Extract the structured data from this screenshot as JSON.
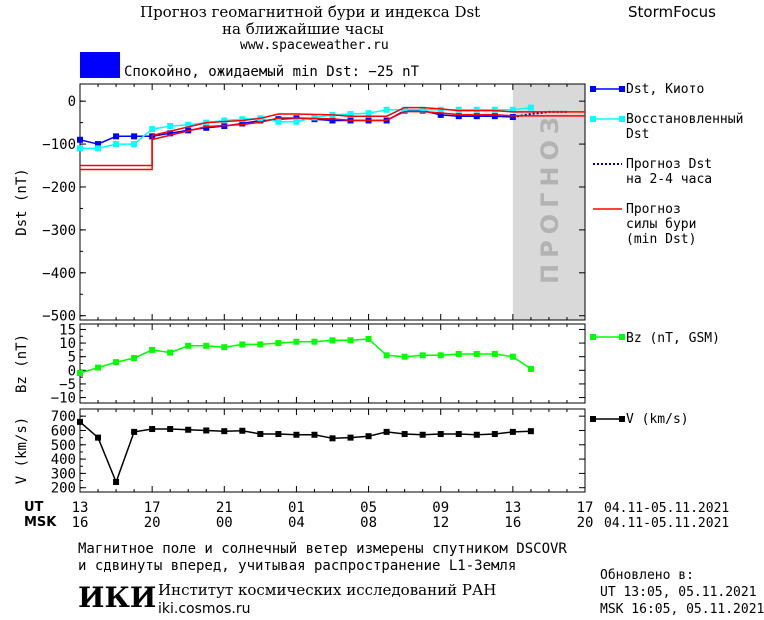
{
  "header": {
    "title_line1": "Прогноз геомагнитной бури и индекса Dst",
    "title_line2": "на ближайшие часы",
    "site": "www.spaceweather.ru",
    "brand": "StormFocus",
    "status_text": "Спокойно, ожидаемый min Dst: −25 nT",
    "status_color": "#0000ff"
  },
  "forecast_band_label": "ПРОГНОЗ",
  "legend": {
    "dst_kyoto": "Dst, Киото",
    "restored_1": "Восстановленный",
    "restored_2": "Dst",
    "forecast_1": "Прогноз Dst",
    "forecast_2": "на 2-4 часа",
    "storm_1": "Прогноз",
    "storm_2": "силы бури",
    "storm_3": "(min Dst)",
    "bz": "Bz (nT, GSM)",
    "v": "V (km/s)"
  },
  "time_axis": {
    "ut_label": "UT",
    "msk_label": "MSK",
    "ut_ticks": [
      "13",
      "17",
      "21",
      "01",
      "05",
      "09",
      "13",
      "17"
    ],
    "msk_ticks": [
      "16",
      "20",
      "00",
      "04",
      "08",
      "12",
      "16",
      "20"
    ],
    "range_ut": "04.11-05.11.2021",
    "range_msk": "04.11-05.11.2021"
  },
  "footer": {
    "note_line1": "Магнитное поле и солнечный ветер измерены спутником DSCOVR",
    "note_line2": "и сдвинуты вперед, учитывая распространение L1-Земля",
    "logo": "ИКИ",
    "institute": "Институт космических исследований РАН",
    "institute_url": "iki.cosmos.ru",
    "updated_label": "Обновлено в:",
    "updated_ut": "UT   13:05, 05.11.2021",
    "updated_msk": "MSK 16:05, 05.11.2021"
  },
  "chart_data": [
    {
      "type": "line",
      "ylabel": "Dst (nT)",
      "ylim": [
        -510,
        40
      ],
      "yticks": [
        0,
        -100,
        -200,
        -300,
        -400,
        -500
      ],
      "xlim_hours_since_13UT_04_11": [
        0,
        28
      ],
      "forecast_region_hours": [
        24,
        28
      ],
      "series": [
        {
          "name": "Dst, Киото",
          "color": "#0000ff",
          "x": [
            0,
            1,
            2,
            3,
            4,
            5,
            6,
            7,
            8,
            9,
            10,
            11,
            12,
            13,
            14,
            15,
            16,
            17,
            18,
            19,
            20,
            21,
            22,
            23,
            24
          ],
          "y": [
            -90,
            -100,
            -82,
            -82,
            -82,
            -75,
            -68,
            -62,
            -58,
            -52,
            -45,
            -42,
            -40,
            -42,
            -45,
            -45,
            -45,
            -45,
            -22,
            -22,
            -32,
            -35,
            -35,
            -35,
            -37
          ]
        },
        {
          "name": "Восстановленный Dst",
          "color": "#00ffff",
          "x": [
            0,
            1,
            2,
            3,
            4,
            5,
            6,
            7,
            8,
            9,
            10,
            11,
            12,
            13,
            14,
            15,
            16,
            17,
            18,
            19,
            20,
            21,
            22,
            23,
            24,
            25
          ],
          "y": [
            -110,
            -110,
            -100,
            -100,
            -65,
            -58,
            -55,
            -50,
            -45,
            -42,
            -40,
            -48,
            -48,
            -38,
            -32,
            -30,
            -28,
            -20,
            -20,
            -20,
            -20,
            -20,
            -20,
            -20,
            -20,
            -15
          ]
        },
        {
          "name": "Прогноз Dst на 2-4 часа",
          "color": "#00008b",
          "dotted": true,
          "x": [
            24,
            25,
            26,
            27
          ],
          "y": [
            -37,
            -30,
            -25,
            -25
          ]
        },
        {
          "name": "Прогноз силы бури (min Dst)",
          "color": "#ff0000",
          "x": [
            0,
            4,
            4,
            7,
            9,
            10,
            11,
            12,
            14,
            15,
            16,
            17,
            18,
            19,
            20,
            21,
            22,
            23,
            24,
            25,
            26,
            27,
            28
          ],
          "y": [
            -150,
            -150,
            -80,
            -50,
            -45,
            -40,
            -30,
            -30,
            -32,
            -35,
            -35,
            -35,
            -15,
            -15,
            -18,
            -22,
            -22,
            -22,
            -25,
            -25,
            -25,
            -25,
            -25
          ]
        }
      ]
    },
    {
      "type": "line",
      "ylabel": "Bz (nT)",
      "ylim": [
        -12,
        17
      ],
      "yticks": [
        15,
        10,
        5,
        0,
        -5,
        -10
      ],
      "series": [
        {
          "name": "Bz (nT, GSM)",
          "color": "#00ff00",
          "x": [
            0,
            1,
            2,
            3,
            4,
            5,
            6,
            7,
            8,
            9,
            10,
            11,
            12,
            13,
            14,
            15,
            16,
            17,
            18,
            19,
            20,
            21,
            22,
            23,
            24,
            25
          ],
          "y": [
            -1,
            1,
            3,
            4.5,
            7.5,
            6.5,
            9,
            9,
            8.5,
            9.5,
            9.5,
            10,
            10.5,
            10.5,
            11,
            11,
            11.5,
            5.5,
            5,
            5.5,
            5.5,
            6,
            6,
            6,
            5,
            0.5
          ]
        }
      ]
    },
    {
      "type": "line",
      "ylabel": "V (km/s)",
      "ylim": [
        170,
        750
      ],
      "yticks": [
        700,
        600,
        500,
        400,
        300,
        200
      ],
      "series": [
        {
          "name": "V (km/s)",
          "color": "#000000",
          "x": [
            0,
            1,
            2,
            3,
            4,
            5,
            6,
            7,
            8,
            9,
            10,
            11,
            12,
            13,
            14,
            15,
            16,
            17,
            18,
            19,
            20,
            21,
            22,
            23,
            24,
            25
          ],
          "y": [
            660,
            550,
            240,
            590,
            610,
            610,
            605,
            600,
            595,
            598,
            575,
            575,
            570,
            570,
            545,
            550,
            560,
            590,
            575,
            570,
            575,
            575,
            570,
            575,
            590,
            595
          ]
        }
      ]
    }
  ]
}
